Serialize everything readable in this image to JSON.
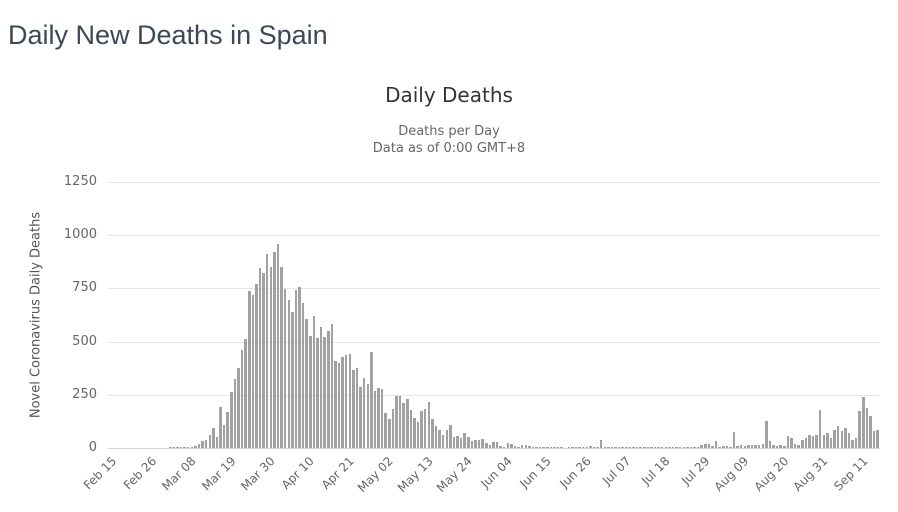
{
  "page": {
    "title": "Daily New Deaths in Spain"
  },
  "chart": {
    "title": "Daily Deaths",
    "subtitle_line1": "Deaths per Day",
    "subtitle_line2": "Data as of 0:00 GMT+8",
    "y_axis_title": "Novel Coronavirus Daily Deaths"
  },
  "colors": {
    "page_title": "#3c4858",
    "chart_title": "#333333",
    "subtitle": "#666666",
    "axis_labels": "#666666",
    "gridline": "#e6e6e6",
    "x_axis_line": "#ccd6eb",
    "bar": "#a1a1a1"
  },
  "chart_data": {
    "type": "bar",
    "title": "Daily Deaths",
    "subtitle": "Deaths per Day — Data as of 0:00 GMT+8",
    "xlabel": "",
    "ylabel": "Novel Coronavirus Daily Deaths",
    "ylim": [
      0,
      1250
    ],
    "y_ticks": [
      0,
      250,
      500,
      750,
      1000,
      1250
    ],
    "grid": true,
    "legend": false,
    "x_unit": "daily values, one bar per day starting Feb 15",
    "start_date": "Feb 15",
    "end_date": "Sep 16",
    "x_tick_interval_days": 11,
    "x_tick_labels": [
      "Feb 15",
      "Feb 26",
      "Mar 08",
      "Mar 19",
      "Mar 30",
      "Apr 10",
      "Apr 21",
      "May 02",
      "May 13",
      "May 24",
      "Jun 04",
      "Jun 15",
      "Jun 26",
      "Jul 07",
      "Jul 18",
      "Jul 29",
      "Aug 09",
      "Aug 20",
      "Aug 31",
      "Sep 11"
    ],
    "values": [
      0,
      0,
      0,
      0,
      0,
      0,
      0,
      0,
      0,
      0,
      0,
      0,
      0,
      0,
      0,
      0,
      0,
      1,
      2,
      1,
      3,
      2,
      5,
      7,
      8,
      19,
      31,
      37,
      60,
      92,
      53,
      191,
      107,
      169,
      262,
      324,
      375,
      462,
      514,
      738,
      718,
      773,
      844,
      821,
      913,
      849,
      923,
      961,
      850,
      749,
      694,
      637,
      743,
      757,
      683,
      605,
      525,
      619,
      517,
      567,
      523,
      551,
      585,
      410,
      399,
      430,
      435,
      440,
      368,
      378,
      288,
      331,
      301,
      453,
      268,
      281,
      276,
      164,
      135,
      185,
      244,
      246,
      213,
      229,
      179,
      143,
      123,
      176,
      184,
      217,
      138,
      102,
      87,
      59,
      83,
      110,
      52,
      56,
      48,
      70,
      50,
      35,
      39,
      38,
      43,
      25,
      12,
      30,
      28,
      10,
      5,
      25,
      20,
      8,
      4,
      15,
      12,
      8,
      5,
      3,
      2,
      1,
      2,
      3,
      2,
      1,
      1,
      0,
      2,
      3,
      2,
      2,
      3,
      2,
      8,
      3,
      2,
      40,
      3,
      2,
      1,
      1,
      2,
      3,
      2,
      4,
      3,
      2,
      1,
      3,
      2,
      2,
      4,
      3,
      2,
      1,
      2,
      3,
      2,
      3,
      4,
      2,
      1,
      5,
      5,
      15,
      17,
      19,
      8,
      31,
      5,
      8,
      10,
      6,
      75,
      8,
      12,
      10,
      14,
      15,
      16,
      12,
      20,
      128,
      31,
      16,
      9,
      13,
      10,
      55,
      47,
      19,
      16,
      39,
      47,
      63,
      55,
      63,
      180,
      63,
      70,
      47,
      86,
      102,
      78,
      94,
      70,
      39,
      47,
      172,
      239,
      188,
      149,
      78,
      86
    ]
  }
}
